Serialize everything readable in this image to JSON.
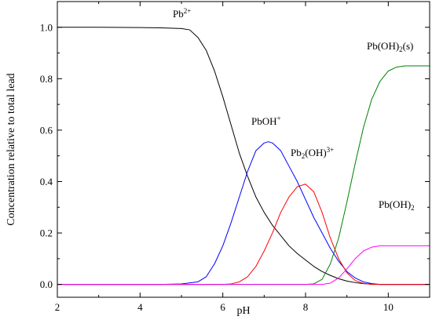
{
  "chart_data": {
    "type": "line",
    "title": "",
    "xlabel": "pH",
    "ylabel": "Concentration relative to total lead",
    "xlim": [
      2,
      11
    ],
    "ylim": [
      -0.05,
      1.1
    ],
    "xticks": [
      2,
      4,
      6,
      8,
      10
    ],
    "xtick_labels": [
      "2",
      "4",
      "6",
      "8",
      "10"
    ],
    "yticks": [
      0.0,
      0.2,
      0.4,
      0.6,
      0.8,
      1.0
    ],
    "ytick_labels": [
      "0.0",
      "0.2",
      "0.4",
      "0.6",
      "0.8",
      "1.0"
    ],
    "grid": false,
    "legend": "none",
    "series": [
      {
        "key": "pb2",
        "label_base": "Pb",
        "label_parts": [
          {
            "t": "Pb"
          },
          {
            "t": "2+",
            "sup": true
          }
        ],
        "color": "#000000",
        "x": [
          2.0,
          3.0,
          4.0,
          4.5,
          5.0,
          5.2,
          5.4,
          5.6,
          5.8,
          6.0,
          6.2,
          6.4,
          6.6,
          6.8,
          7.0,
          7.2,
          7.4,
          7.6,
          7.8,
          8.0,
          8.2,
          8.4,
          8.6,
          8.8,
          9.0,
          9.2,
          9.4,
          9.6,
          9.8,
          10.0,
          10.5,
          11.0
        ],
        "y": [
          1.0,
          1.0,
          0.999,
          0.998,
          0.995,
          0.99,
          0.96,
          0.91,
          0.83,
          0.73,
          0.62,
          0.51,
          0.42,
          0.34,
          0.28,
          0.23,
          0.19,
          0.15,
          0.12,
          0.095,
          0.07,
          0.05,
          0.035,
          0.022,
          0.013,
          0.007,
          0.003,
          0.001,
          0.0,
          0.0,
          0.0,
          0.0
        ]
      },
      {
        "key": "pboh",
        "label_base": "PbOH",
        "label_parts": [
          {
            "t": "PbOH"
          },
          {
            "t": "+",
            "sup": true
          }
        ],
        "color": "#0000ff",
        "x": [
          2.0,
          4.0,
          4.5,
          5.0,
          5.4,
          5.6,
          5.8,
          6.0,
          6.2,
          6.4,
          6.6,
          6.8,
          7.0,
          7.1,
          7.2,
          7.4,
          7.6,
          7.8,
          8.0,
          8.2,
          8.4,
          8.6,
          8.8,
          9.0,
          9.2,
          9.4,
          9.6,
          9.8,
          10.0,
          10.5,
          11.0
        ],
        "y": [
          0.0,
          0.0,
          0.0,
          0.002,
          0.01,
          0.03,
          0.08,
          0.15,
          0.24,
          0.34,
          0.44,
          0.52,
          0.55,
          0.555,
          0.55,
          0.52,
          0.46,
          0.4,
          0.33,
          0.26,
          0.2,
          0.14,
          0.09,
          0.05,
          0.025,
          0.01,
          0.003,
          0.0,
          0.0,
          0.0,
          0.0
        ]
      },
      {
        "key": "pb2oh",
        "label_base": "Pb(OH)",
        "label_parts": [
          {
            "t": "Pb"
          },
          {
            "t": "2",
            "sub": true
          },
          {
            "t": "(OH)"
          },
          {
            "t": "3+",
            "sup": true
          }
        ],
        "color": "#ff0000",
        "x": [
          2.0,
          6.0,
          6.2,
          6.4,
          6.6,
          6.8,
          7.0,
          7.2,
          7.4,
          7.6,
          7.8,
          8.0,
          8.2,
          8.4,
          8.6,
          8.8,
          9.0,
          9.2,
          9.4,
          9.6,
          10.0,
          11.0
        ],
        "y": [
          0.0,
          0.0,
          0.002,
          0.01,
          0.03,
          0.07,
          0.13,
          0.2,
          0.28,
          0.34,
          0.38,
          0.39,
          0.36,
          0.28,
          0.18,
          0.1,
          0.045,
          0.015,
          0.004,
          0.0,
          0.0,
          0.0
        ]
      },
      {
        "key": "pboh2s",
        "label_base": "Pb(OH)(s)",
        "label_parts": [
          {
            "t": "Pb(OH)"
          },
          {
            "t": "2",
            "sub": true
          },
          {
            "t": "(s)"
          }
        ],
        "color": "#008000",
        "x": [
          2.0,
          8.0,
          8.2,
          8.4,
          8.6,
          8.8,
          9.0,
          9.2,
          9.4,
          9.6,
          9.8,
          10.0,
          10.2,
          10.4,
          10.6,
          11.0
        ],
        "y": [
          0.0,
          0.0,
          0.002,
          0.02,
          0.08,
          0.18,
          0.32,
          0.47,
          0.61,
          0.72,
          0.79,
          0.83,
          0.845,
          0.85,
          0.85,
          0.85
        ]
      },
      {
        "key": "pboh2",
        "label_base": "Pb(OH)",
        "label_parts": [
          {
            "t": "Pb(OH)"
          },
          {
            "t": "2",
            "sub": true
          }
        ],
        "color": "#ff00ff",
        "x": [
          2.0,
          8.4,
          8.6,
          8.8,
          9.0,
          9.2,
          9.4,
          9.6,
          9.8,
          10.0,
          11.0
        ],
        "y": [
          0.0,
          0.0,
          0.005,
          0.025,
          0.06,
          0.1,
          0.13,
          0.145,
          0.15,
          0.15,
          0.15
        ]
      }
    ]
  }
}
